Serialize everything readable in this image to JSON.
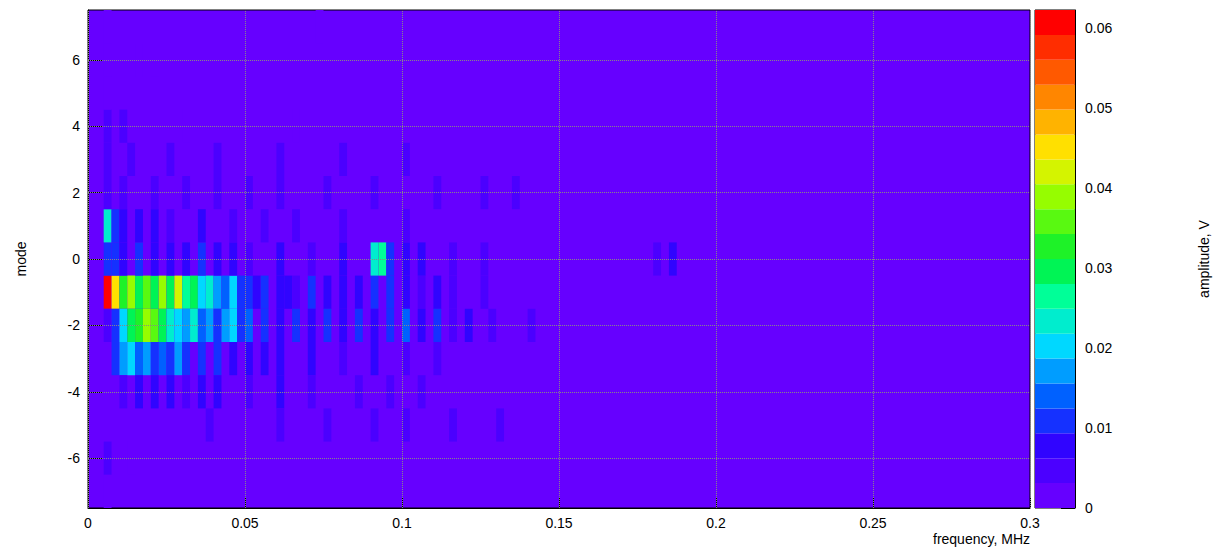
{
  "chart_data": {
    "type": "heatmap",
    "xlabel": "frequency, MHz",
    "ylabel": "mode",
    "xlim": [
      0,
      0.3
    ],
    "xticks": [
      0,
      0.05,
      0.1,
      0.15,
      0.2,
      0.25,
      0.3
    ],
    "ylim": [
      -7.5,
      7.5
    ],
    "yticks": [
      -6,
      -4,
      -2,
      0,
      2,
      4,
      6
    ],
    "grid": true,
    "xbin_width": 0.0025,
    "ybin_width": 1,
    "cells": [
      [
        0.005,
        -1,
        0.062
      ],
      [
        0.0075,
        -1,
        0.045
      ],
      [
        0.01,
        -1,
        0.033
      ],
      [
        0.0125,
        -1,
        0.04
      ],
      [
        0.015,
        -1,
        0.03
      ],
      [
        0.0175,
        -1,
        0.036
      ],
      [
        0.02,
        -1,
        0.028
      ],
      [
        0.0225,
        -1,
        0.038
      ],
      [
        0.025,
        -1,
        0.03
      ],
      [
        0.0275,
        -1,
        0.042
      ],
      [
        0.03,
        -1,
        0.025
      ],
      [
        0.0325,
        -1,
        0.03
      ],
      [
        0.035,
        -1,
        0.02
      ],
      [
        0.0375,
        -1,
        0.024
      ],
      [
        0.04,
        -1,
        0.018
      ],
      [
        0.0425,
        -1,
        0.015
      ],
      [
        0.045,
        -1,
        0.02
      ],
      [
        0.0475,
        -1,
        0.012
      ],
      [
        0.05,
        -1,
        0.01
      ],
      [
        0.0525,
        -1,
        0.008
      ],
      [
        0.055,
        -1,
        0.012
      ],
      [
        0.06,
        -1,
        0.008
      ],
      [
        0.0625,
        -1,
        0.009
      ],
      [
        0.065,
        -1,
        0.006
      ],
      [
        0.07,
        -1,
        0.01
      ],
      [
        0.075,
        -1,
        0.008
      ],
      [
        0.08,
        -1,
        0.007
      ],
      [
        0.085,
        -1,
        0.009
      ],
      [
        0.09,
        -1,
        0.012
      ],
      [
        0.095,
        -1,
        0.01
      ],
      [
        0.1,
        -1,
        0.008
      ],
      [
        0.105,
        -1,
        0.006
      ],
      [
        0.11,
        -1,
        0.007
      ],
      [
        0.115,
        -1,
        0.005
      ],
      [
        0.125,
        -1,
        0.005
      ],
      [
        0.005,
        -2,
        0.005
      ],
      [
        0.0075,
        -2,
        0.012
      ],
      [
        0.01,
        -2,
        0.02
      ],
      [
        0.0125,
        -2,
        0.028
      ],
      [
        0.015,
        -2,
        0.032
      ],
      [
        0.0175,
        -2,
        0.038
      ],
      [
        0.02,
        -2,
        0.036
      ],
      [
        0.0225,
        -2,
        0.03
      ],
      [
        0.025,
        -2,
        0.024
      ],
      [
        0.0275,
        -2,
        0.02
      ],
      [
        0.03,
        -2,
        0.016
      ],
      [
        0.0325,
        -2,
        0.022
      ],
      [
        0.035,
        -2,
        0.014
      ],
      [
        0.0375,
        -2,
        0.018
      ],
      [
        0.04,
        -2,
        0.012
      ],
      [
        0.0425,
        -2,
        0.016
      ],
      [
        0.045,
        -2,
        0.02
      ],
      [
        0.0475,
        -2,
        0.012
      ],
      [
        0.05,
        -2,
        0.015
      ],
      [
        0.055,
        -2,
        0.01
      ],
      [
        0.06,
        -2,
        0.009
      ],
      [
        0.065,
        -2,
        0.011
      ],
      [
        0.07,
        -2,
        0.008
      ],
      [
        0.075,
        -2,
        0.01
      ],
      [
        0.08,
        -2,
        0.009
      ],
      [
        0.085,
        -2,
        0.012
      ],
      [
        0.09,
        -2,
        0.008
      ],
      [
        0.095,
        -2,
        0.01
      ],
      [
        0.1,
        -2,
        0.014
      ],
      [
        0.105,
        -2,
        0.008
      ],
      [
        0.11,
        -2,
        0.01
      ],
      [
        0.115,
        -2,
        0.006
      ],
      [
        0.12,
        -2,
        0.008
      ],
      [
        0.1275,
        -2,
        0.005
      ],
      [
        0.14,
        -2,
        0.005
      ],
      [
        0.0075,
        -3,
        0.01
      ],
      [
        0.01,
        -3,
        0.016
      ],
      [
        0.0125,
        -3,
        0.02
      ],
      [
        0.015,
        -3,
        0.014
      ],
      [
        0.0175,
        -3,
        0.018
      ],
      [
        0.02,
        -3,
        0.012
      ],
      [
        0.0225,
        -3,
        0.015
      ],
      [
        0.025,
        -3,
        0.01
      ],
      [
        0.0275,
        -3,
        0.016
      ],
      [
        0.03,
        -3,
        0.012
      ],
      [
        0.035,
        -3,
        0.01
      ],
      [
        0.04,
        -3,
        0.012
      ],
      [
        0.045,
        -3,
        0.009
      ],
      [
        0.05,
        -3,
        0.008
      ],
      [
        0.055,
        -3,
        0.007
      ],
      [
        0.06,
        -3,
        0.009
      ],
      [
        0.07,
        -3,
        0.007
      ],
      [
        0.08,
        -3,
        0.006
      ],
      [
        0.09,
        -3,
        0.008
      ],
      [
        0.1,
        -3,
        0.006
      ],
      [
        0.11,
        -3,
        0.005
      ],
      [
        0.01,
        -4,
        0.006
      ],
      [
        0.015,
        -4,
        0.008
      ],
      [
        0.02,
        -4,
        0.007
      ],
      [
        0.025,
        -4,
        0.009
      ],
      [
        0.03,
        -4,
        0.006
      ],
      [
        0.035,
        -4,
        0.007
      ],
      [
        0.04,
        -4,
        0.008
      ],
      [
        0.05,
        -4,
        0.006
      ],
      [
        0.06,
        -4,
        0.007
      ],
      [
        0.07,
        -4,
        0.005
      ],
      [
        0.085,
        -4,
        0.006
      ],
      [
        0.095,
        -4,
        0.006
      ],
      [
        0.105,
        -4,
        0.005
      ],
      [
        0.0375,
        -5,
        0.004
      ],
      [
        0.06,
        -5,
        0.004
      ],
      [
        0.075,
        -5,
        0.004
      ],
      [
        0.09,
        -5,
        0.005
      ],
      [
        0.1,
        -5,
        0.004
      ],
      [
        0.115,
        -5,
        0.004
      ],
      [
        0.13,
        -5,
        0.004
      ],
      [
        0.005,
        -6,
        0.004
      ],
      [
        0.0125,
        -6,
        0.003
      ],
      [
        0.005,
        -7,
        0.003
      ],
      [
        0.005,
        0,
        0.012
      ],
      [
        0.0075,
        0,
        0.01
      ],
      [
        0.01,
        0,
        0.008
      ],
      [
        0.015,
        0,
        0.01
      ],
      [
        0.02,
        0,
        0.007
      ],
      [
        0.025,
        0,
        0.009
      ],
      [
        0.03,
        0,
        0.008
      ],
      [
        0.035,
        0,
        0.01
      ],
      [
        0.04,
        0,
        0.007
      ],
      [
        0.045,
        0,
        0.009
      ],
      [
        0.05,
        0,
        0.006
      ],
      [
        0.06,
        0,
        0.007
      ],
      [
        0.07,
        0,
        0.006
      ],
      [
        0.08,
        0,
        0.007
      ],
      [
        0.09,
        0,
        0.022
      ],
      [
        0.0925,
        0,
        0.027
      ],
      [
        0.095,
        0,
        0.012
      ],
      [
        0.1,
        0,
        0.009
      ],
      [
        0.105,
        0,
        0.007
      ],
      [
        0.115,
        0,
        0.006
      ],
      [
        0.125,
        0,
        0.005
      ],
      [
        0.18,
        0,
        0.006
      ],
      [
        0.185,
        0,
        0.008
      ],
      [
        0.005,
        1,
        0.022
      ],
      [
        0.0075,
        1,
        0.012
      ],
      [
        0.01,
        1,
        0.009
      ],
      [
        0.015,
        1,
        0.008
      ],
      [
        0.02,
        1,
        0.007
      ],
      [
        0.025,
        1,
        0.006
      ],
      [
        0.035,
        1,
        0.007
      ],
      [
        0.045,
        1,
        0.006
      ],
      [
        0.055,
        1,
        0.005
      ],
      [
        0.065,
        1,
        0.005
      ],
      [
        0.08,
        1,
        0.004
      ],
      [
        0.1,
        1,
        0.004
      ],
      [
        0.005,
        2,
        0.006
      ],
      [
        0.01,
        2,
        0.005
      ],
      [
        0.02,
        2,
        0.005
      ],
      [
        0.03,
        2,
        0.004
      ],
      [
        0.04,
        2,
        0.005
      ],
      [
        0.05,
        2,
        0.004
      ],
      [
        0.06,
        2,
        0.004
      ],
      [
        0.075,
        2,
        0.004
      ],
      [
        0.09,
        2,
        0.005
      ],
      [
        0.11,
        2,
        0.004
      ],
      [
        0.125,
        2,
        0.004
      ],
      [
        0.135,
        2,
        0.004
      ],
      [
        0.005,
        3,
        0.004
      ],
      [
        0.0125,
        3,
        0.005
      ],
      [
        0.025,
        3,
        0.004
      ],
      [
        0.04,
        3,
        0.004
      ],
      [
        0.06,
        3,
        0.004
      ],
      [
        0.08,
        3,
        0.004
      ],
      [
        0.1,
        3,
        0.004
      ],
      [
        0.005,
        4,
        0.004
      ],
      [
        0.01,
        4,
        0.004
      ],
      [
        0.03,
        4,
        0.003
      ],
      [
        0.065,
        4,
        0.003
      ],
      [
        0.005,
        5,
        0.003
      ],
      [
        0.02,
        5,
        0.003
      ],
      [
        0.005,
        6,
        0.003
      ],
      [
        0.015,
        6,
        0.003
      ],
      [
        0.005,
        7,
        0.003
      ],
      [
        0.0725,
        7,
        0.003
      ]
    ],
    "colorbar": {
      "label": "amplitude, V",
      "lim": [
        0,
        0.0622
      ],
      "ticks": [
        0,
        0.01,
        0.02,
        0.03,
        0.04,
        0.05,
        0.06
      ]
    }
  }
}
